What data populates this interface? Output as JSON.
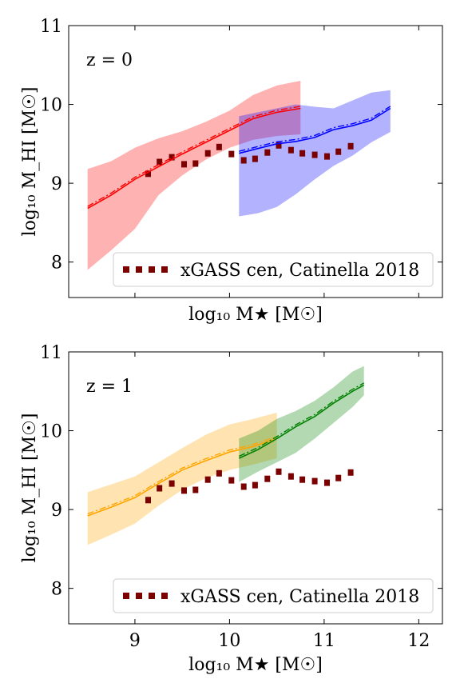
{
  "chart_data": [
    {
      "type": "line",
      "panel": "top",
      "annotation": "z = 0",
      "xlabel": "log₁₀ M★ [M☉]",
      "ylabel": "log₁₀ M_HI [M☉]",
      "xlim": [
        8.3,
        12.25
      ],
      "ylim": [
        7.55,
        11.0
      ],
      "xticks": [
        9,
        10,
        11,
        12
      ],
      "xtick_labels_shown": false,
      "yticks": [
        8,
        9,
        10,
        11
      ],
      "ytick_labels": [
        "8",
        "9",
        "10",
        "11"
      ],
      "legend": {
        "placement": "lower-right",
        "entries": [
          {
            "label": "xGASS cen, Catinella 2018",
            "style": "dotted",
            "color": "#7b0000"
          }
        ]
      },
      "series": [
        {
          "color": "#ff0000",
          "style": "solid+dashdot",
          "x": [
            8.5,
            8.75,
            9.0,
            9.25,
            9.5,
            9.75,
            10.0,
            10.25,
            10.5,
            10.75
          ],
          "y": [
            8.68,
            8.85,
            9.05,
            9.21,
            9.37,
            9.52,
            9.67,
            9.82,
            9.9,
            9.95
          ],
          "band_lower": [
            7.9,
            8.15,
            8.42,
            8.85,
            9.1,
            9.3,
            9.45,
            9.55,
            9.6,
            9.62
          ],
          "band_upper": [
            9.18,
            9.28,
            9.45,
            9.57,
            9.66,
            9.78,
            9.92,
            10.12,
            10.24,
            10.3
          ]
        },
        {
          "color": "#0000ff",
          "style": "solid+dashdot",
          "x": [
            10.1,
            10.3,
            10.5,
            10.7,
            10.9,
            11.1,
            11.3,
            11.5,
            11.7
          ],
          "y": [
            9.38,
            9.44,
            9.5,
            9.53,
            9.58,
            9.68,
            9.73,
            9.8,
            9.95
          ],
          "band_lower": [
            8.58,
            8.62,
            8.7,
            8.86,
            9.05,
            9.22,
            9.35,
            9.52,
            9.65
          ],
          "band_upper": [
            9.85,
            9.9,
            9.95,
            10.0,
            9.97,
            9.95,
            10.05,
            10.15,
            10.18
          ]
        }
      ],
      "reference": {
        "name": "xGASS cen, Catinella 2018",
        "color": "#7b0000",
        "x": [
          9.14,
          9.26,
          9.39,
          9.52,
          9.64,
          9.77,
          9.89,
          10.02,
          10.15,
          10.27,
          10.4,
          10.52,
          10.65,
          10.77,
          10.9,
          11.03,
          11.15,
          11.28
        ],
        "y": [
          9.12,
          9.27,
          9.33,
          9.24,
          9.25,
          9.38,
          9.46,
          9.37,
          9.29,
          9.31,
          9.39,
          9.48,
          9.42,
          9.38,
          9.36,
          9.34,
          9.4,
          9.47
        ]
      }
    },
    {
      "type": "line",
      "panel": "bottom",
      "annotation": "z = 1",
      "xlabel": "log₁₀ M★ [M☉]",
      "ylabel": "log₁₀ M_HI [M☉]",
      "xlim": [
        8.3,
        12.25
      ],
      "ylim": [
        7.55,
        11.0
      ],
      "xticks": [
        9,
        10,
        11,
        12
      ],
      "xtick_labels": [
        "9",
        "10",
        "11",
        "12"
      ],
      "yticks": [
        8,
        9,
        10,
        11
      ],
      "ytick_labels": [
        "8",
        "9",
        "10",
        "11"
      ],
      "legend": {
        "placement": "lower-right",
        "entries": [
          {
            "label": "xGASS cen, Catinella 2018",
            "style": "dotted",
            "color": "#7b0000"
          }
        ]
      },
      "series": [
        {
          "color": "#ffa500",
          "style": "solid+dashdot",
          "x": [
            8.5,
            8.75,
            9.0,
            9.25,
            9.5,
            9.75,
            10.0,
            10.25,
            10.5
          ],
          "y": [
            8.92,
            9.03,
            9.15,
            9.33,
            9.5,
            9.62,
            9.73,
            9.8,
            9.9
          ],
          "band_lower": [
            8.55,
            8.68,
            8.82,
            9.05,
            9.25,
            9.4,
            9.5,
            9.57,
            9.65
          ],
          "band_upper": [
            9.22,
            9.32,
            9.42,
            9.6,
            9.78,
            9.95,
            10.08,
            10.15,
            10.23
          ]
        },
        {
          "color": "#008000",
          "style": "solid+dashdot",
          "x": [
            10.1,
            10.3,
            10.5,
            10.7,
            10.9,
            11.1,
            11.3,
            11.42
          ],
          "y": [
            9.65,
            9.76,
            9.9,
            10.05,
            10.18,
            10.35,
            10.5,
            10.58
          ],
          "band_lower": [
            9.35,
            9.48,
            9.6,
            9.72,
            9.9,
            10.1,
            10.3,
            10.45
          ],
          "band_upper": [
            9.9,
            10.0,
            10.15,
            10.25,
            10.38,
            10.55,
            10.75,
            10.82
          ]
        }
      ],
      "reference": {
        "name": "xGASS cen, Catinella 2018",
        "color": "#7b0000",
        "x": [
          9.14,
          9.26,
          9.39,
          9.52,
          9.64,
          9.77,
          9.89,
          10.02,
          10.15,
          10.27,
          10.4,
          10.52,
          10.65,
          10.77,
          10.9,
          11.03,
          11.15,
          11.28
        ],
        "y": [
          9.12,
          9.27,
          9.33,
          9.24,
          9.25,
          9.38,
          9.46,
          9.37,
          9.29,
          9.31,
          9.39,
          9.48,
          9.42,
          9.38,
          9.36,
          9.34,
          9.4,
          9.47
        ]
      }
    }
  ]
}
